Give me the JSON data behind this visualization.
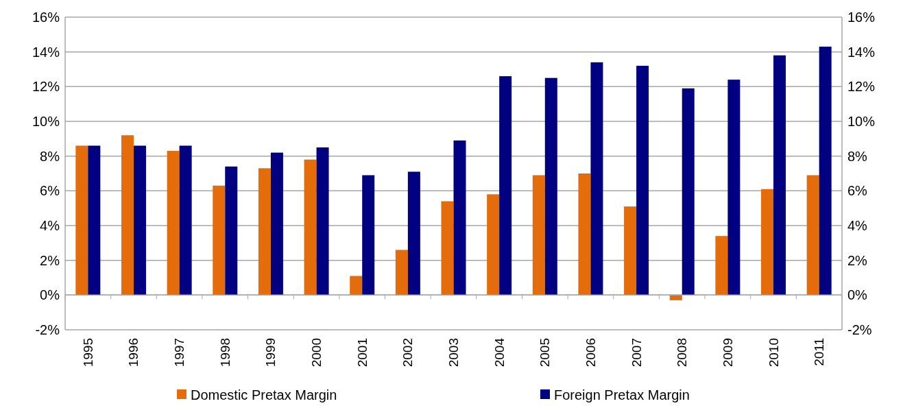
{
  "chart_data": {
    "type": "bar",
    "categories": [
      "1995",
      "1996",
      "1997",
      "1998",
      "1999",
      "2000",
      "2001",
      "2002",
      "2003",
      "2004",
      "2005",
      "2006",
      "2007",
      "2008",
      "2009",
      "2010",
      "2011"
    ],
    "series": [
      {
        "name": "Domestic Pretax Margin",
        "color": "#e46c0a",
        "values": [
          8.6,
          9.2,
          8.3,
          6.3,
          7.3,
          7.8,
          1.1,
          2.6,
          5.4,
          5.8,
          6.9,
          7.0,
          5.1,
          -0.3,
          3.4,
          6.1,
          6.9
        ]
      },
      {
        "name": "Foreign Pretax Margin",
        "color": "#000080",
        "values": [
          8.6,
          8.6,
          8.6,
          7.4,
          8.2,
          8.5,
          6.9,
          7.1,
          8.9,
          12.6,
          12.5,
          13.4,
          13.2,
          11.9,
          12.4,
          13.8,
          14.3
        ]
      }
    ],
    "ylim": [
      -2,
      16
    ],
    "yticks": [
      {
        "value": -2,
        "label": "-2%"
      },
      {
        "value": 0,
        "label": "0%"
      },
      {
        "value": 2,
        "label": "2%"
      },
      {
        "value": 4,
        "label": "4%"
      },
      {
        "value": 6,
        "label": "6%"
      },
      {
        "value": 8,
        "label": "8%"
      },
      {
        "value": 10,
        "label": "10%"
      },
      {
        "value": 12,
        "label": "12%"
      },
      {
        "value": 14,
        "label": "14%"
      },
      {
        "value": 16,
        "label": "16%"
      }
    ],
    "y2lim": [
      -2,
      16
    ],
    "y2ticks": [
      {
        "value": -2,
        "label": "-2%"
      },
      {
        "value": 0,
        "label": "0%"
      },
      {
        "value": 2,
        "label": "2%"
      },
      {
        "value": 4,
        "label": "4%"
      },
      {
        "value": 6,
        "label": "6%"
      },
      {
        "value": 8,
        "label": "8%"
      },
      {
        "value": 10,
        "label": "10%"
      },
      {
        "value": 12,
        "label": "12%"
      },
      {
        "value": 14,
        "label": "14%"
      },
      {
        "value": 16,
        "label": "16%"
      }
    ],
    "grid": "y",
    "legend": "bottom"
  }
}
